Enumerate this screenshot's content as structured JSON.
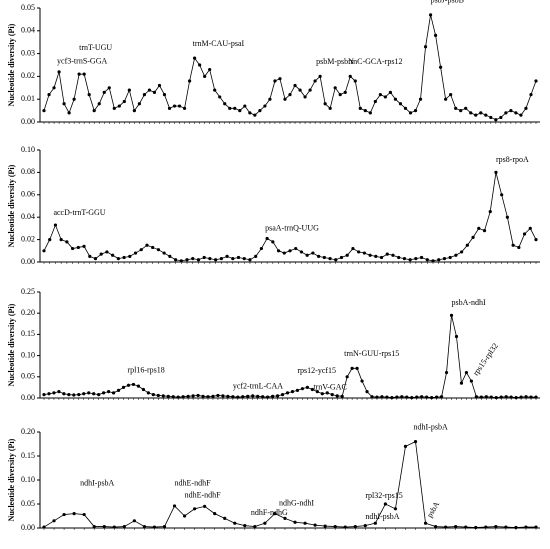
{
  "chart_data": [
    {
      "type": "line",
      "y_label": "Nucleotide diversity (Pi)",
      "color": "#000000",
      "annotations": [
        "ycf3-trnS-GGA",
        "trnT-UGU",
        "trnM-CAU-psaI",
        "psbM-psbN",
        "trnC-GCA-rps12",
        "psbJ-psbB"
      ],
      "ylim": [
        0,
        0.05
      ],
      "yticks": [
        {
          "value": 0,
          "label": "0.00"
        },
        {
          "value": 0.01,
          "label": "0.01"
        },
        {
          "value": 0.02,
          "label": "0.02"
        },
        {
          "value": 0.03,
          "label": "0.03"
        },
        {
          "value": 0.04,
          "label": "0.04"
        },
        {
          "value": 0.05,
          "label": "0.05"
        }
      ],
      "values": [
        0.005,
        0.012,
        0.015,
        0.022,
        0.008,
        0.004,
        0.01,
        0.021,
        0.021,
        0.012,
        0.005,
        0.008,
        0.013,
        0.015,
        0.006,
        0.007,
        0.009,
        0.014,
        0.005,
        0.008,
        0.012,
        0.014,
        0.013,
        0.016,
        0.012,
        0.006,
        0.007,
        0.007,
        0.006,
        0.018,
        0.028,
        0.025,
        0.02,
        0.023,
        0.014,
        0.011,
        0.008,
        0.006,
        0.006,
        0.005,
        0.007,
        0.004,
        0.003,
        0.005,
        0.007,
        0.01,
        0.018,
        0.019,
        0.01,
        0.012,
        0.016,
        0.014,
        0.011,
        0.014,
        0.018,
        0.02,
        0.008,
        0.006,
        0.015,
        0.012,
        0.013,
        0.02,
        0.018,
        0.006,
        0.005,
        0.004,
        0.009,
        0.012,
        0.011,
        0.013,
        0.01,
        0.008,
        0.006,
        0.004,
        0.005,
        0.01,
        0.033,
        0.047,
        0.038,
        0.024,
        0.01,
        0.012,
        0.006,
        0.005,
        0.006,
        0.004,
        0.003,
        0.004,
        0.003,
        0.002,
        0.001,
        0.002,
        0.004,
        0.005,
        0.004,
        0.003,
        0.006,
        0.012,
        0.018
      ]
    },
    {
      "type": "line",
      "y_label": "Nucleotide diversity (Pi)",
      "color": "#000000",
      "annotations": [
        "accD-trnT-GGU",
        "psaA-trnQ-UUG",
        "rps8-rpoA"
      ],
      "ylim": [
        0,
        0.1
      ],
      "yticks": [
        {
          "value": 0,
          "label": "0.00"
        },
        {
          "value": 0.02,
          "label": "0.02"
        },
        {
          "value": 0.04,
          "label": "0.04"
        },
        {
          "value": 0.06,
          "label": "0.06"
        },
        {
          "value": 0.08,
          "label": "0.08"
        },
        {
          "value": 0.1,
          "label": "0.10"
        }
      ],
      "values": [
        0.01,
        0.02,
        0.033,
        0.02,
        0.018,
        0.012,
        0.013,
        0.014,
        0.005,
        0.003,
        0.007,
        0.009,
        0.006,
        0.003,
        0.004,
        0.005,
        0.008,
        0.011,
        0.015,
        0.013,
        0.011,
        0.008,
        0.005,
        0.002,
        0.001,
        0.002,
        0.003,
        0.002,
        0.004,
        0.003,
        0.002,
        0.003,
        0.005,
        0.003,
        0.004,
        0.003,
        0.002,
        0.005,
        0.012,
        0.021,
        0.018,
        0.01,
        0.008,
        0.01,
        0.012,
        0.009,
        0.006,
        0.008,
        0.005,
        0.004,
        0.003,
        0.002,
        0.004,
        0.006,
        0.012,
        0.009,
        0.008,
        0.006,
        0.005,
        0.004,
        0.007,
        0.006,
        0.004,
        0.003,
        0.002,
        0.003,
        0.004,
        0.002,
        0.001,
        0.002,
        0.003,
        0.004,
        0.006,
        0.009,
        0.015,
        0.022,
        0.03,
        0.028,
        0.045,
        0.08,
        0.06,
        0.04,
        0.015,
        0.013,
        0.025,
        0.03,
        0.02
      ]
    },
    {
      "type": "line",
      "y_label": "Nucleotide diversity (Pi)",
      "color": "#000000",
      "annotations": [
        "rpl16-rps18",
        "ycf2-trnL-CAA",
        "rps12-ycf15",
        "trnV-GAC",
        "trnN-GUU-rps15",
        "psbA-ndhI",
        "rps15-rpl32"
      ],
      "ylim": [
        0,
        0.25
      ],
      "yticks": [
        {
          "value": 0,
          "label": "0.00"
        },
        {
          "value": 0.05,
          "label": "0.05"
        },
        {
          "value": 0.1,
          "label": "0.10"
        },
        {
          "value": 0.15,
          "label": "0.15"
        },
        {
          "value": 0.2,
          "label": "0.20"
        },
        {
          "value": 0.25,
          "label": "0.25"
        }
      ],
      "values": [
        0.008,
        0.01,
        0.012,
        0.015,
        0.01,
        0.008,
        0.007,
        0.008,
        0.01,
        0.012,
        0.01,
        0.008,
        0.012,
        0.015,
        0.012,
        0.018,
        0.025,
        0.03,
        0.032,
        0.028,
        0.02,
        0.012,
        0.008,
        0.006,
        0.005,
        0.004,
        0.003,
        0.002,
        0.003,
        0.004,
        0.005,
        0.006,
        0.004,
        0.003,
        0.004,
        0.006,
        0.005,
        0.004,
        0.003,
        0.002,
        0.003,
        0.004,
        0.005,
        0.004,
        0.003,
        0.002,
        0.004,
        0.005,
        0.008,
        0.012,
        0.015,
        0.018,
        0.022,
        0.025,
        0.02,
        0.015,
        0.01,
        0.012,
        0.008,
        0.005,
        0.004,
        0.05,
        0.07,
        0.07,
        0.04,
        0.015,
        0.003,
        0.002,
        0.003,
        0.002,
        0.001,
        0.002,
        0.003,
        0.002,
        0.001,
        0.002,
        0.003,
        0.002,
        0.001,
        0.002,
        0.003,
        0.06,
        0.195,
        0.145,
        0.035,
        0.06,
        0.04,
        0.003,
        0.002,
        0.003,
        0.002,
        0.001,
        0.002,
        0.003,
        0.002,
        0.001,
        0.002,
        0.003,
        0.002,
        0.002
      ]
    },
    {
      "type": "line",
      "y_label": "Nucleotide diversity (Pi)",
      "color": "#000000",
      "annotations": [
        "ndhI-psbA",
        "ndhE-ndhF",
        "ndhE-ndhF",
        "ndhF-ndhG",
        "ndhG-ndhI",
        "ndhI-psbA",
        "rpl32-rps15",
        "ndhI-psbA",
        "psbA"
      ],
      "ylim": [
        0,
        0.2
      ],
      "yticks": [
        {
          "value": 0,
          "label": "0.00"
        },
        {
          "value": 0.05,
          "label": "0.05"
        },
        {
          "value": 0.1,
          "label": "0.10"
        },
        {
          "value": 0.15,
          "label": "0.15"
        },
        {
          "value": 0.2,
          "label": "0.20"
        }
      ],
      "values": [
        0.002,
        0.015,
        0.028,
        0.03,
        0.028,
        0.003,
        0.003,
        0.002,
        0.003,
        0.015,
        0.003,
        0.002,
        0.003,
        0.046,
        0.025,
        0.04,
        0.045,
        0.03,
        0.02,
        0.01,
        0.005,
        0.003,
        0.01,
        0.03,
        0.02,
        0.012,
        0.01,
        0.006,
        0.004,
        0.003,
        0.002,
        0.003,
        0.005,
        0.01,
        0.05,
        0.04,
        0.17,
        0.18,
        0.01,
        0.003,
        0.002,
        0.003,
        0.002,
        0.001,
        0.002,
        0.003,
        0.002,
        0.001,
        0.002,
        0.002
      ]
    }
  ]
}
